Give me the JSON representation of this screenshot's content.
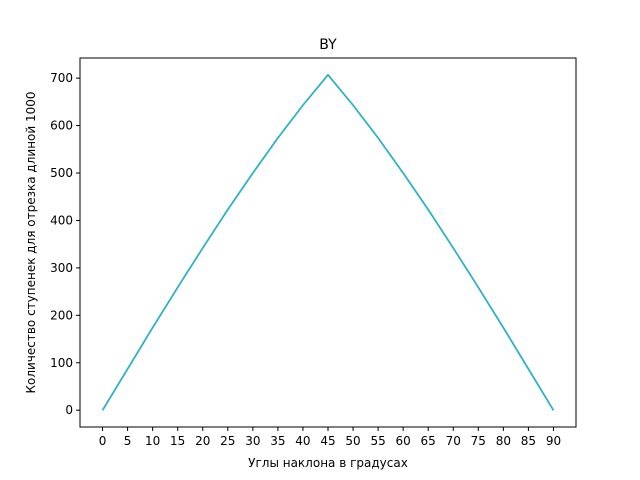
{
  "chart_data": {
    "type": "line",
    "title": "BY",
    "xlabel": "Углы наклона в градусах",
    "ylabel": "Количество ступенек для отрезка длиной 1000",
    "xlim": [
      -4.5,
      94.5
    ],
    "ylim": [
      -35.4,
      742.5
    ],
    "x_ticks": [
      "0",
      "5",
      "10",
      "15",
      "20",
      "25",
      "30",
      "35",
      "40",
      "45",
      "50",
      "55",
      "60",
      "65",
      "70",
      "75",
      "80",
      "85",
      "90"
    ],
    "y_ticks": [
      "0",
      "100",
      "200",
      "300",
      "400",
      "500",
      "600",
      "700"
    ],
    "grid": false,
    "legend": "none",
    "series": [
      {
        "color": "#9467bd",
        "x": [
          0,
          5,
          10,
          15,
          20,
          25,
          30,
          35,
          40,
          45,
          50,
          55,
          60,
          65,
          70,
          75,
          80,
          85,
          90
        ],
        "y": [
          0,
          87,
          174,
          259,
          342,
          423,
          500,
          574,
          643,
          707,
          643,
          574,
          500,
          423,
          342,
          259,
          174,
          87,
          0
        ]
      },
      {
        "color": "#8c564b",
        "x": [
          0,
          5,
          10,
          15,
          20,
          25,
          30,
          35,
          40,
          45,
          50,
          55,
          60,
          65,
          70,
          75,
          80,
          85,
          90
        ],
        "y": [
          0,
          87,
          174,
          259,
          342,
          423,
          500,
          574,
          643,
          707,
          643,
          574,
          500,
          423,
          342,
          259,
          174,
          87,
          0
        ]
      },
      {
        "color": "#17becf",
        "x": [
          0,
          5,
          10,
          15,
          20,
          25,
          30,
          35,
          40,
          45,
          50,
          55,
          60,
          65,
          70,
          75,
          80,
          85,
          90
        ],
        "y": [
          0,
          87,
          174,
          259,
          342,
          423,
          500,
          574,
          643,
          707,
          643,
          574,
          500,
          423,
          342,
          259,
          174,
          87,
          0
        ]
      }
    ]
  }
}
